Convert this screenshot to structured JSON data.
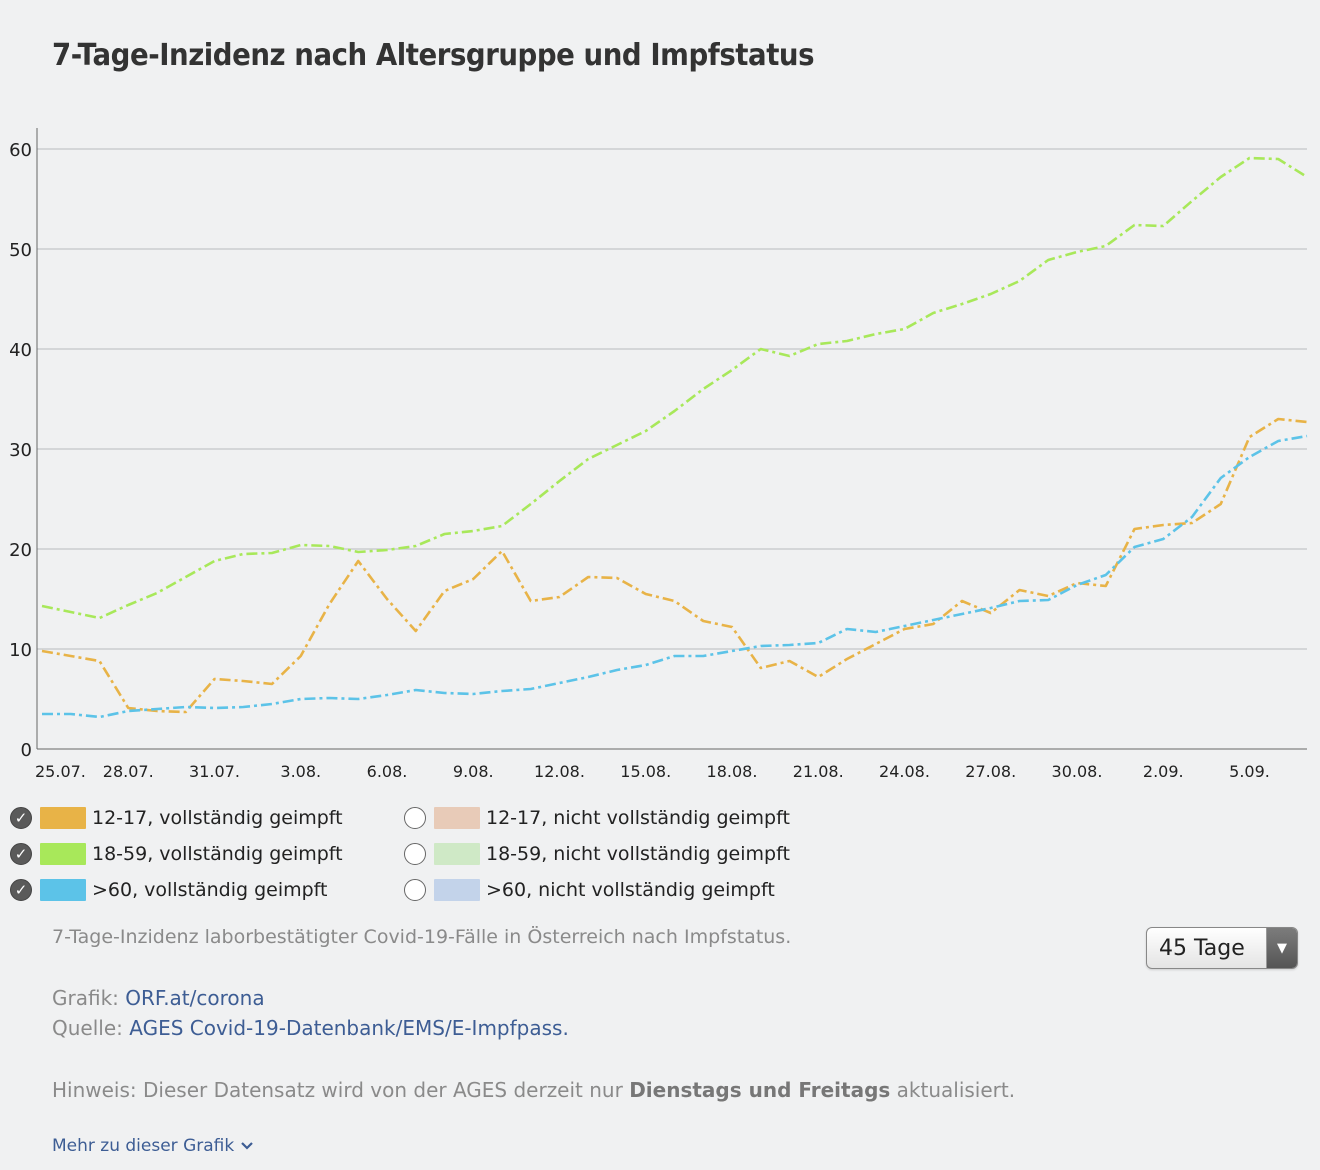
{
  "title": "7-Tage-Inzidenz nach Altersgruppe und Impfstatus",
  "chart_data": {
    "type": "line",
    "title": "7-Tage-Inzidenz nach Altersgruppe und Impfstatus",
    "xlabel": "",
    "ylabel": "",
    "ylim": [
      0,
      60
    ],
    "yticks": [
      0,
      10,
      20,
      30,
      40,
      50,
      60
    ],
    "grid": true,
    "xtick_labels": [
      "25.07.",
      "28.07.",
      "31.07.",
      "3.08.",
      "6.08.",
      "9.08.",
      "12.08.",
      "15.08.",
      "18.08.",
      "21.08.",
      "24.08.",
      "27.08.",
      "30.08.",
      "2.09.",
      "5.09."
    ],
    "x_start": "25.07.",
    "x_end": "6.09.",
    "series": [
      {
        "name": "12-17, vollständig geimpft",
        "color": "#e8b347",
        "values": [
          9.8,
          9.3,
          8.8,
          4.1,
          3.8,
          3.7,
          7.0,
          6.8,
          6.5,
          9.3,
          14.5,
          18.8,
          15.0,
          11.8,
          15.8,
          17.0,
          19.8,
          14.8,
          15.2,
          17.2,
          17.1,
          15.5,
          14.8,
          12.8,
          12.2,
          8.1,
          8.8,
          7.2,
          9.0,
          10.5,
          12.0,
          12.5,
          14.8,
          13.6,
          15.9,
          15.3,
          16.6,
          16.3,
          22.0,
          22.4,
          22.6,
          24.5,
          31.2,
          33.0,
          32.7
        ]
      },
      {
        "name": "18-59, vollständig geimpft",
        "color": "#a8e85a",
        "values": [
          14.3,
          13.7,
          13.1,
          14.4,
          15.6,
          17.2,
          18.8,
          19.5,
          19.6,
          20.4,
          20.3,
          19.7,
          19.9,
          20.3,
          21.5,
          21.8,
          22.3,
          24.5,
          26.8,
          29.0,
          30.4,
          31.8,
          33.8,
          36.0,
          37.9,
          40.0,
          39.3,
          40.5,
          40.8,
          41.5,
          42.0,
          43.6,
          44.5,
          45.5,
          46.8,
          48.9,
          49.7,
          50.3,
          52.4,
          52.3,
          54.8,
          57.2,
          59.1,
          59.0,
          57.2
        ]
      },
      {
        "name": ">60, vollständig geimpft",
        "color": "#5cc3e8",
        "values": [
          3.5,
          3.5,
          3.2,
          3.8,
          4.0,
          4.2,
          4.1,
          4.2,
          4.5,
          5.0,
          5.1,
          5.0,
          5.4,
          5.9,
          5.6,
          5.5,
          5.8,
          6.0,
          6.6,
          7.2,
          7.9,
          8.4,
          9.3,
          9.3,
          9.8,
          10.3,
          10.4,
          10.6,
          12.0,
          11.7,
          12.3,
          12.9,
          13.5,
          14.1,
          14.8,
          14.9,
          16.4,
          17.4,
          20.2,
          21.0,
          23.2,
          27.1,
          29.2,
          30.8,
          31.3
        ]
      }
    ]
  },
  "legend": {
    "items": [
      {
        "label": "12-17, vollständig geimpft",
        "color": "#e8b347",
        "checked": true
      },
      {
        "label": "18-59, vollständig geimpft",
        "color": "#a8e85a",
        "checked": true
      },
      {
        "label": ">60, vollständig geimpft",
        "color": "#5cc3e8",
        "checked": true
      },
      {
        "label": "12-17, nicht vollständig geimpft",
        "color": "#e8cbb8",
        "checked": false
      },
      {
        "label": "18-59, nicht vollständig geimpft",
        "color": "#cfe9c6",
        "checked": false
      },
      {
        "label": ">60, nicht vollständig geimpft",
        "color": "#c3d3ea",
        "checked": false
      }
    ]
  },
  "description": "7-Tage-Inzidenz laborbestätigter Covid-19-Fälle in Österreich nach Impfstatus.",
  "range_select": {
    "value": "45 Tage"
  },
  "credits": {
    "grafik_label": "Grafik:",
    "grafik_link": "ORF.at/corona",
    "quelle_label": "Quelle:",
    "quelle_link": "AGES Covid-19-Datenbank/EMS/E-Impfpass."
  },
  "note": {
    "prefix": "Hinweis: Dieser Datensatz wird von der AGES derzeit nur",
    "bold": "Dienstags und Freitags",
    "suffix": "aktualisiert."
  },
  "more_link": "Mehr zu dieser Grafik"
}
